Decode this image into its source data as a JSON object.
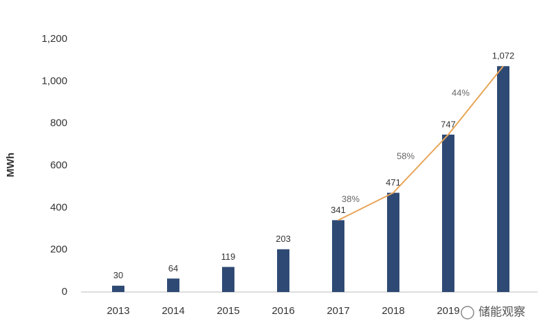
{
  "chart_data": {
    "type": "bar",
    "y_label": "MWh",
    "categories": [
      "2013",
      "2014",
      "2015",
      "2016",
      "2017",
      "2018",
      "2019",
      null
    ],
    "series": [
      {
        "type": "bar",
        "color": "#2e4a74",
        "values": [
          30,
          64,
          119,
          203,
          341,
          471,
          747,
          1072
        ],
        "value_labels": [
          "30",
          "64",
          "119",
          "203",
          "341",
          "471",
          "747",
          "1,072"
        ]
      },
      {
        "type": "line",
        "color": "#e8a55a",
        "values": [
          null,
          null,
          null,
          null,
          341,
          471,
          747,
          1072
        ]
      },
      {
        "type": "growth",
        "color": "#666666",
        "values": [
          null,
          null,
          null,
          null,
          null,
          38,
          58,
          44
        ],
        "value_labels": [
          null,
          null,
          null,
          null,
          null,
          "38%",
          "58%",
          "44%"
        ]
      }
    ],
    "ylim": [
      0,
      1200
    ],
    "yticks": [
      0,
      200,
      400,
      600,
      800,
      {
        "value": 1000,
        "label": "1,000"
      },
      {
        "value": 1200,
        "label": "1,200"
      }
    ],
    "grid": false,
    "watermark": "储能观察"
  }
}
